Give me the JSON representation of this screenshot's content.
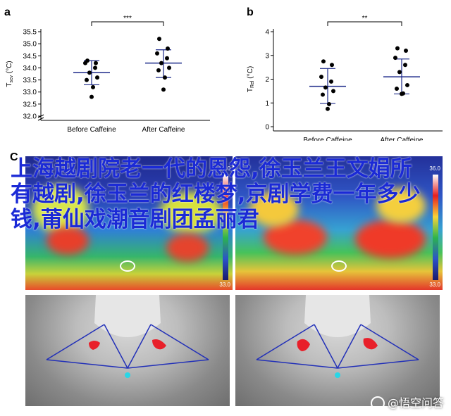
{
  "chart_data": [
    {
      "panel": "a",
      "type": "scatter",
      "categories": [
        "Before Caffeine",
        "After Caffeine"
      ],
      "ylabel_main": "T",
      "ylabel_sub": "scv",
      "ylabel_unit": "(°C)",
      "ylim": [
        32.0,
        35.5
      ],
      "yticks": [
        "32.0",
        "32.5",
        "33.0",
        "33.5",
        "34.0",
        "34.5",
        "35.0",
        "35.5"
      ],
      "axis_break": true,
      "significance": "***",
      "series": [
        {
          "values": [
            34.3,
            34.2,
            34.2,
            34.0,
            33.8,
            33.6,
            33.5,
            33.2,
            32.8
          ],
          "mean": 33.8,
          "error": [
            33.3,
            34.3
          ]
        },
        {
          "values": [
            35.2,
            34.8,
            34.6,
            34.4,
            34.2,
            34.0,
            33.9,
            33.6,
            33.1
          ],
          "mean": 34.2,
          "error": [
            33.6,
            34.75
          ]
        }
      ]
    },
    {
      "panel": "b",
      "type": "scatter",
      "categories": [
        "Before Caffeine",
        "After Caffeine"
      ],
      "ylabel_main": "T",
      "ylabel_sub": "Rel",
      "ylabel_unit": "(°C)",
      "ylim": [
        0,
        4
      ],
      "yticks": [
        "0",
        "1",
        "2",
        "3",
        "4"
      ],
      "axis_break": false,
      "significance": "**",
      "series": [
        {
          "values": [
            2.75,
            2.6,
            2.1,
            1.9,
            1.65,
            1.5,
            1.35,
            0.95,
            0.75
          ],
          "mean": 1.7,
          "error": [
            0.98,
            2.45
          ]
        },
        {
          "values": [
            3.3,
            3.2,
            2.9,
            2.6,
            2.3,
            1.75,
            1.6,
            1.4,
            1.38
          ],
          "mean": 2.1,
          "error": [
            1.38,
            2.85
          ]
        }
      ]
    }
  ],
  "panel_c": {
    "letter": "C",
    "colorbar_top": "36.0",
    "colorbar_bottom": "33.0"
  },
  "overlay_text": "上海越剧院老一代的恩怨,徐玉兰王文娟所有越剧,徐玉兰的红楼梦,京剧学费一年多少钱,莆仙戏潮音剧团孟丽君",
  "watermark": "@悟空问答",
  "colors": {
    "dot": "#000000",
    "line": "#1d2a8a"
  }
}
